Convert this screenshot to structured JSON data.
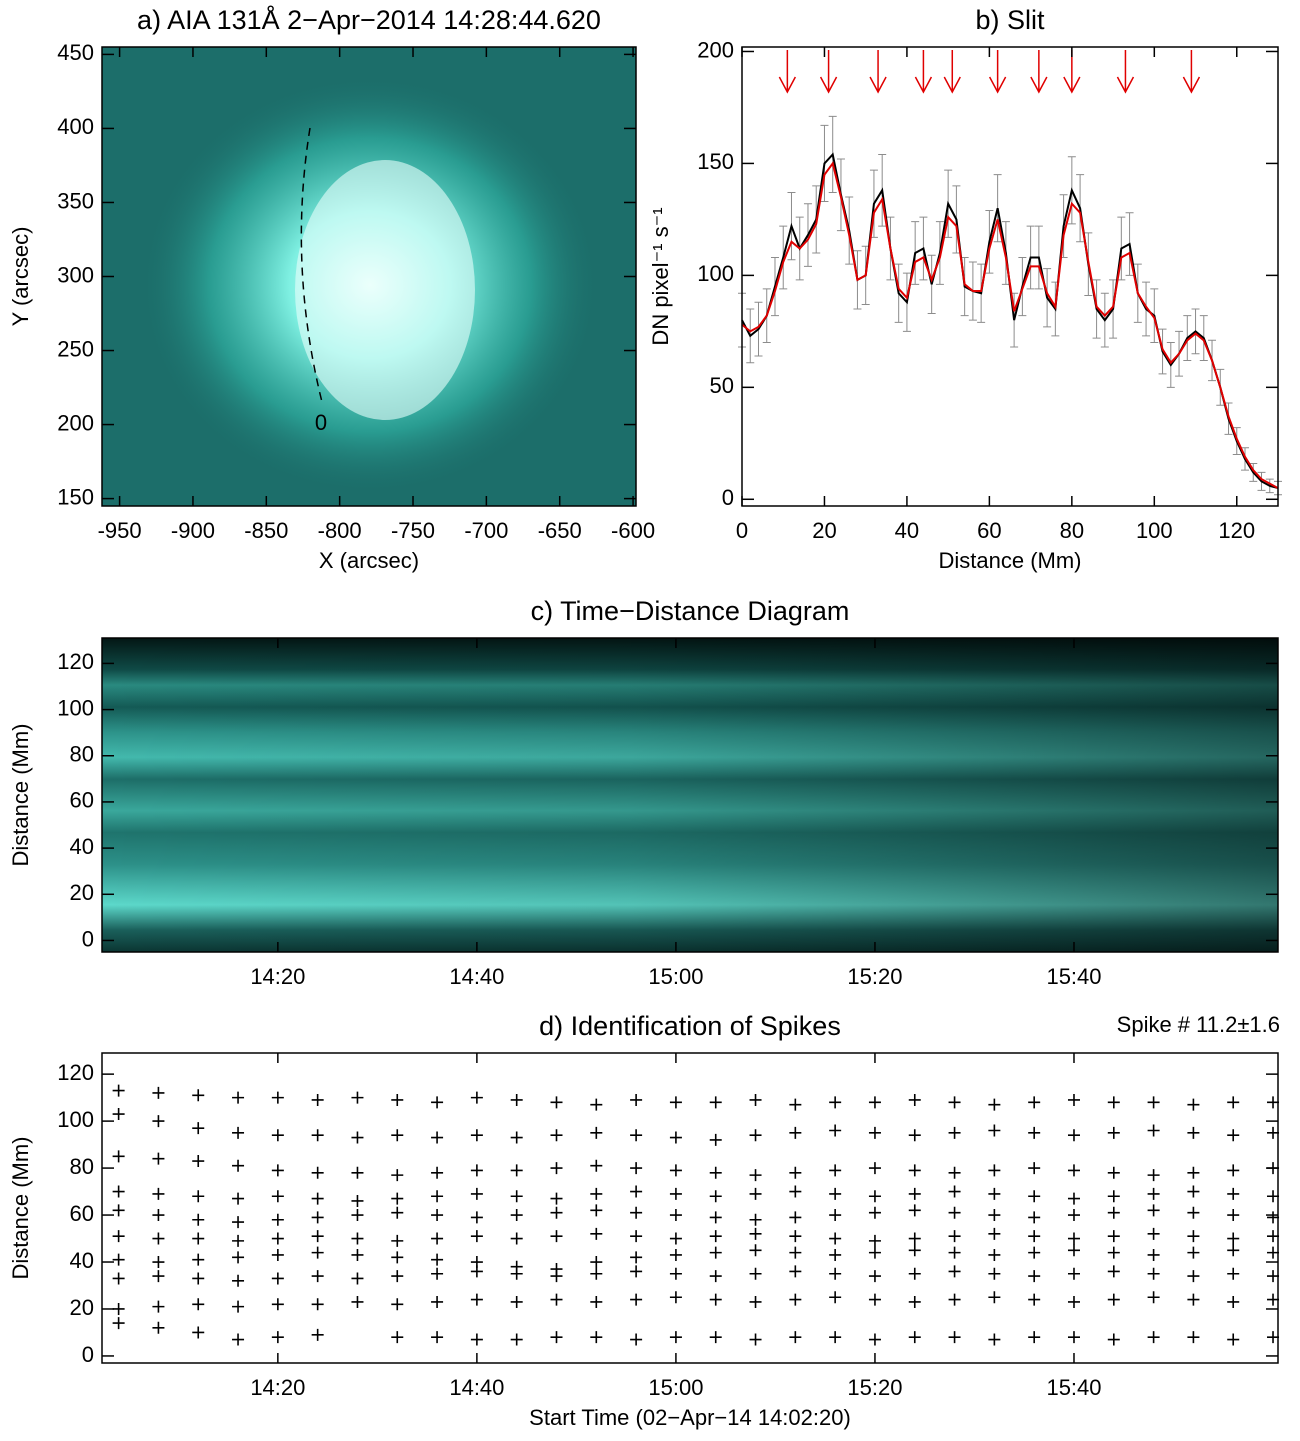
{
  "chart_data": [
    {
      "type": "image",
      "title": "a) AIA 131Å 2−Apr−2014 14:28:44.620",
      "xlabel": "X (arcsec)",
      "ylabel": "Y (arcsec)",
      "xlim": [
        -962,
        -598
      ],
      "ylim": [
        145,
        455
      ],
      "xticks": [
        -950,
        -900,
        -850,
        -800,
        -750,
        -700,
        -650,
        -600
      ],
      "yticks": [
        150,
        200,
        250,
        300,
        350,
        400,
        450
      ],
      "slit_label": "0"
    },
    {
      "type": "line",
      "title": "b) Slit",
      "xlabel": "Distance (Mm)",
      "ylabel": "DN pixel⁻¹ s⁻¹",
      "xlim": [
        0,
        130
      ],
      "ylim": [
        -3,
        202
      ],
      "xticks": [
        0,
        20,
        40,
        60,
        80,
        100,
        120
      ],
      "yticks": [
        0,
        50,
        100,
        150,
        200
      ],
      "x": [
        0,
        2,
        4,
        6,
        8,
        10,
        12,
        14,
        16,
        18,
        20,
        22,
        24,
        26,
        28,
        30,
        32,
        34,
        36,
        38,
        40,
        42,
        44,
        46,
        48,
        50,
        52,
        54,
        56,
        58,
        60,
        62,
        64,
        66,
        68,
        70,
        72,
        74,
        76,
        78,
        80,
        82,
        84,
        86,
        88,
        90,
        92,
        94,
        96,
        98,
        100,
        102,
        104,
        106,
        108,
        110,
        112,
        114,
        116,
        118,
        120,
        122,
        124,
        126,
        128,
        130
      ],
      "series": [
        {
          "color": "#000000",
          "error_color": "#8c8c8c",
          "values": [
            80,
            73,
            76,
            82,
            95,
            108,
            122,
            112,
            118,
            125,
            150,
            154,
            136,
            120,
            98,
            100,
            132,
            138,
            112,
            92,
            88,
            110,
            112,
            96,
            110,
            132,
            125,
            95,
            93,
            92,
            115,
            130,
            110,
            80,
            95,
            108,
            108,
            90,
            85,
            122,
            138,
            130,
            105,
            85,
            80,
            85,
            112,
            114,
            92,
            85,
            82,
            66,
            60,
            65,
            72,
            75,
            72,
            62,
            50,
            36,
            26,
            18,
            12,
            8,
            6,
            5
          ],
          "errors": [
            12,
            12,
            12,
            12,
            13,
            14,
            15,
            14,
            14,
            15,
            17,
            17,
            16,
            15,
            13,
            13,
            15,
            16,
            14,
            13,
            13,
            14,
            14,
            13,
            14,
            15,
            15,
            13,
            13,
            13,
            14,
            15,
            14,
            12,
            13,
            14,
            14,
            13,
            12,
            14,
            15,
            15,
            14,
            13,
            12,
            13,
            14,
            14,
            13,
            12,
            12,
            10,
            10,
            10,
            10,
            10,
            10,
            9,
            8,
            7,
            6,
            5,
            4,
            4,
            3,
            3
          ]
        },
        {
          "color": "#e00000",
          "values": [
            78,
            75,
            77,
            82,
            93,
            106,
            115,
            112,
            116,
            123,
            145,
            150,
            135,
            118,
            98,
            100,
            128,
            134,
            112,
            94,
            90,
            106,
            108,
            98,
            108,
            126,
            122,
            96,
            93,
            93,
            112,
            125,
            108,
            84,
            94,
            104,
            104,
            92,
            86,
            118,
            132,
            128,
            106,
            86,
            82,
            86,
            108,
            110,
            92,
            86,
            81,
            67,
            61,
            65,
            71,
            74,
            71,
            62,
            50,
            37,
            27,
            19,
            13,
            9,
            7,
            5
          ]
        }
      ],
      "arrows_x": [
        11,
        21,
        33,
        44,
        51,
        62,
        72,
        80,
        93,
        109
      ],
      "arrow_color": "#e00000"
    },
    {
      "type": "image",
      "title": "c) Time−Distance Diagram",
      "ylabel": "Distance (Mm)",
      "xlim": [
        842.33,
        960.5
      ],
      "ylim": [
        -5,
        131
      ],
      "xticks": [
        {
          "value": 860,
          "label": "14:20"
        },
        {
          "value": 880,
          "label": "14:40"
        },
        {
          "value": 900,
          "label": "15:00"
        },
        {
          "value": 920,
          "label": "15:20"
        },
        {
          "value": 940,
          "label": "15:40"
        }
      ],
      "yticks": [
        0,
        20,
        40,
        60,
        80,
        100,
        120
      ]
    },
    {
      "type": "scatter",
      "title": "d) Identification of Spikes",
      "annotation": "Spike # 11.2±1.6",
      "xlabel": "Start Time (02−Apr−14 14:02:20)",
      "ylabel": "Distance (Mm)",
      "xlim": [
        842.33,
        960.5
      ],
      "ylim": [
        -3,
        129
      ],
      "xticks": [
        {
          "value": 860,
          "label": "14:20"
        },
        {
          "value": 880,
          "label": "14:40"
        },
        {
          "value": 900,
          "label": "15:00"
        },
        {
          "value": 920,
          "label": "15:20"
        },
        {
          "value": 940,
          "label": "15:40"
        }
      ],
      "yticks": [
        0,
        20,
        40,
        60,
        80,
        100,
        120
      ],
      "color": "#000000",
      "x": [
        844,
        848,
        852,
        856,
        860,
        864,
        868,
        872,
        876,
        880,
        884,
        888,
        892,
        896,
        900,
        904,
        908,
        912,
        916,
        920,
        924,
        928,
        932,
        936,
        940,
        944,
        948,
        952,
        956,
        960
      ],
      "series": [
        {
          "values": [
            113,
            112,
            111,
            110,
            110,
            109,
            110,
            109,
            108,
            110,
            109,
            108,
            107,
            109,
            108,
            108,
            109,
            107,
            108,
            108,
            109,
            108,
            107,
            108,
            109,
            108,
            108,
            107,
            108,
            108
          ]
        },
        {
          "values": [
            103,
            100,
            97,
            95,
            94,
            94,
            93,
            94,
            93,
            94,
            93,
            94,
            95,
            94,
            93,
            92,
            94,
            95,
            96,
            95,
            94,
            95,
            96,
            95,
            94,
            95,
            96,
            95,
            94,
            95
          ]
        },
        {
          "values": [
            85,
            84,
            83,
            81,
            79,
            78,
            78,
            77,
            78,
            79,
            79,
            80,
            81,
            80,
            79,
            78,
            77,
            78,
            79,
            80,
            79,
            78,
            79,
            80,
            79,
            78,
            77,
            78,
            79,
            80
          ]
        },
        {
          "values": [
            70,
            69,
            68,
            67,
            68,
            67,
            66,
            67,
            68,
            69,
            68,
            67,
            69,
            70,
            69,
            68,
            69,
            70,
            69,
            68,
            69,
            70,
            69,
            68,
            67,
            68,
            69,
            70,
            69,
            68
          ]
        },
        {
          "values": [
            62,
            60,
            58,
            57,
            58,
            59,
            60,
            61,
            60,
            59,
            60,
            61,
            62,
            61,
            60,
            59,
            58,
            59,
            60,
            61,
            62,
            61,
            60,
            59,
            60,
            61,
            62,
            61,
            60,
            59
          ]
        },
        {
          "values": [
            51,
            50,
            50,
            49,
            50,
            51,
            50,
            49,
            50,
            51,
            50,
            51,
            52,
            51,
            50,
            51,
            52,
            51,
            50,
            49,
            50,
            51,
            52,
            51,
            50,
            51,
            52,
            51,
            50,
            51
          ]
        },
        {
          "values": [
            41,
            40,
            41,
            42,
            43,
            44,
            43,
            42,
            41,
            40,
            38,
            37,
            40,
            42,
            43,
            44,
            45,
            44,
            43,
            44,
            45,
            44,
            43,
            44,
            45,
            44,
            43,
            44,
            45,
            44
          ]
        },
        {
          "values": [
            33,
            34,
            33,
            32,
            33,
            34,
            33,
            34,
            35,
            36,
            35,
            34,
            35,
            36,
            35,
            34,
            35,
            36,
            35,
            34,
            35,
            36,
            35,
            34,
            35,
            36,
            35,
            34,
            35,
            34
          ]
        },
        {
          "values": [
            20,
            21,
            22,
            21,
            22,
            22,
            23,
            22,
            23,
            24,
            23,
            24,
            23,
            24,
            25,
            24,
            23,
            24,
            25,
            24,
            23,
            24,
            25,
            24,
            23,
            24,
            25,
            24,
            23,
            24
          ]
        },
        {
          "values": [
            14,
            12,
            10,
            7,
            8,
            9,
            null,
            8,
            8,
            7,
            7,
            8,
            8,
            7,
            8,
            8,
            7,
            8,
            8,
            7,
            8,
            8,
            7,
            8,
            8,
            7,
            8,
            8,
            7,
            8
          ]
        }
      ]
    }
  ]
}
